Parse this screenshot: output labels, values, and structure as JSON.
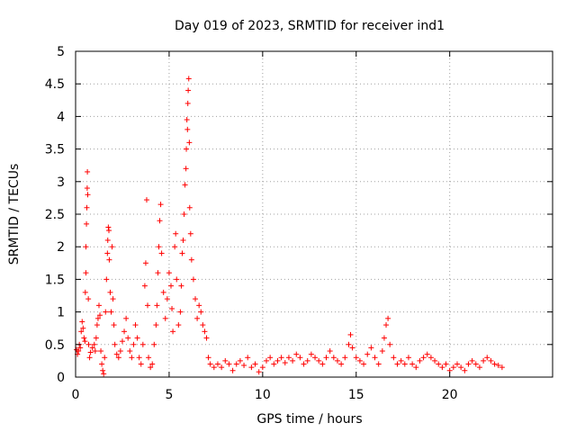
{
  "chart_data": {
    "type": "scatter",
    "title": "Day 019 of 2023, SRMTID for receiver ind1",
    "xlabel": "GPS time / hours",
    "ylabel": "SRMTID / TECUs",
    "xlim": [
      0,
      25.5
    ],
    "ylim": [
      0,
      5
    ],
    "xticks": [
      "0",
      "5",
      "10",
      "15",
      "20"
    ],
    "xtick_values": [
      0,
      5,
      10,
      15,
      20
    ],
    "yticks": [
      "0",
      "0.5",
      "1",
      "1.5",
      "2",
      "2.5",
      "3",
      "3.5",
      "4",
      "4.5",
      "5"
    ],
    "ytick_values": [
      0,
      0.5,
      1,
      1.5,
      2,
      2.5,
      3,
      3.5,
      4,
      4.5,
      5
    ],
    "grid": true,
    "marker": "+",
    "marker_color": "#ff0000",
    "series": [
      {
        "name": "SRMTID",
        "points": [
          [
            0.05,
            0.42
          ],
          [
            0.1,
            0.35
          ],
          [
            0.15,
            0.4
          ],
          [
            0.2,
            0.5
          ],
          [
            0.25,
            0.45
          ],
          [
            0.3,
            0.7
          ],
          [
            0.35,
            0.85
          ],
          [
            0.4,
            0.75
          ],
          [
            0.45,
            0.6
          ],
          [
            0.5,
            0.55
          ],
          [
            0.52,
            1.3
          ],
          [
            0.55,
            1.6
          ],
          [
            0.55,
            2.0
          ],
          [
            0.58,
            2.35
          ],
          [
            0.6,
            2.6
          ],
          [
            0.62,
            2.9
          ],
          [
            0.63,
            3.15
          ],
          [
            0.65,
            2.8
          ],
          [
            0.68,
            1.2
          ],
          [
            0.7,
            0.5
          ],
          [
            0.75,
            0.3
          ],
          [
            0.8,
            0.38
          ],
          [
            0.9,
            0.45
          ],
          [
            1.0,
            0.5
          ],
          [
            1.05,
            0.4
          ],
          [
            1.1,
            0.6
          ],
          [
            1.15,
            0.8
          ],
          [
            1.2,
            0.9
          ],
          [
            1.25,
            1.1
          ],
          [
            1.3,
            0.95
          ],
          [
            1.35,
            0.4
          ],
          [
            1.4,
            0.2
          ],
          [
            1.45,
            0.1
          ],
          [
            1.5,
            0.05
          ],
          [
            1.55,
            0.3
          ],
          [
            1.6,
            1.0
          ],
          [
            1.65,
            1.5
          ],
          [
            1.7,
            1.9
          ],
          [
            1.72,
            2.1
          ],
          [
            1.75,
            2.3
          ],
          [
            1.78,
            2.25
          ],
          [
            1.8,
            1.8
          ],
          [
            1.85,
            1.3
          ],
          [
            1.9,
            1.0
          ],
          [
            1.95,
            2.0
          ],
          [
            2.0,
            1.2
          ],
          [
            2.05,
            0.8
          ],
          [
            2.1,
            0.5
          ],
          [
            2.2,
            0.35
          ],
          [
            2.3,
            0.3
          ],
          [
            2.4,
            0.4
          ],
          [
            2.5,
            0.55
          ],
          [
            2.6,
            0.7
          ],
          [
            2.7,
            0.9
          ],
          [
            2.8,
            0.6
          ],
          [
            2.9,
            0.4
          ],
          [
            3.0,
            0.3
          ],
          [
            3.1,
            0.5
          ],
          [
            3.2,
            0.8
          ],
          [
            3.3,
            0.6
          ],
          [
            3.4,
            0.3
          ],
          [
            3.5,
            0.2
          ],
          [
            3.6,
            0.5
          ],
          [
            3.7,
            1.4
          ],
          [
            3.75,
            1.75
          ],
          [
            3.8,
            2.72
          ],
          [
            3.85,
            1.1
          ],
          [
            3.9,
            0.3
          ],
          [
            4.0,
            0.15
          ],
          [
            4.1,
            0.2
          ],
          [
            4.2,
            0.5
          ],
          [
            4.3,
            0.8
          ],
          [
            4.35,
            1.1
          ],
          [
            4.4,
            1.6
          ],
          [
            4.45,
            2.0
          ],
          [
            4.5,
            2.4
          ],
          [
            4.55,
            2.65
          ],
          [
            4.6,
            1.9
          ],
          [
            4.7,
            1.3
          ],
          [
            4.8,
            0.9
          ],
          [
            4.9,
            1.2
          ],
          [
            5.0,
            1.6
          ],
          [
            5.1,
            1.4
          ],
          [
            5.15,
            1.05
          ],
          [
            5.2,
            0.7
          ],
          [
            5.3,
            2.0
          ],
          [
            5.35,
            2.2
          ],
          [
            5.4,
            1.5
          ],
          [
            5.5,
            0.8
          ],
          [
            5.6,
            1.0
          ],
          [
            5.65,
            1.4
          ],
          [
            5.7,
            1.9
          ],
          [
            5.75,
            2.1
          ],
          [
            5.8,
            2.5
          ],
          [
            5.85,
            2.95
          ],
          [
            5.9,
            3.2
          ],
          [
            5.92,
            3.5
          ],
          [
            5.95,
            3.95
          ],
          [
            5.98,
            3.8
          ],
          [
            6.0,
            4.2
          ],
          [
            6.02,
            4.4
          ],
          [
            6.05,
            4.58
          ],
          [
            6.08,
            3.6
          ],
          [
            6.1,
            2.6
          ],
          [
            6.15,
            2.2
          ],
          [
            6.2,
            1.8
          ],
          [
            6.3,
            1.5
          ],
          [
            6.4,
            1.2
          ],
          [
            6.5,
            0.9
          ],
          [
            6.6,
            1.1
          ],
          [
            6.7,
            1.0
          ],
          [
            6.8,
            0.8
          ],
          [
            6.9,
            0.7
          ],
          [
            7.0,
            0.6
          ],
          [
            7.1,
            0.3
          ],
          [
            7.2,
            0.2
          ],
          [
            7.4,
            0.15
          ],
          [
            7.6,
            0.2
          ],
          [
            7.8,
            0.15
          ],
          [
            8.0,
            0.25
          ],
          [
            8.2,
            0.2
          ],
          [
            8.4,
            0.1
          ],
          [
            8.6,
            0.2
          ],
          [
            8.8,
            0.25
          ],
          [
            9.0,
            0.18
          ],
          [
            9.2,
            0.3
          ],
          [
            9.4,
            0.15
          ],
          [
            9.6,
            0.2
          ],
          [
            9.8,
            0.08
          ],
          [
            10.0,
            0.15
          ],
          [
            10.2,
            0.25
          ],
          [
            10.4,
            0.3
          ],
          [
            10.6,
            0.2
          ],
          [
            10.8,
            0.25
          ],
          [
            11.0,
            0.3
          ],
          [
            11.2,
            0.22
          ],
          [
            11.4,
            0.3
          ],
          [
            11.6,
            0.25
          ],
          [
            11.8,
            0.35
          ],
          [
            12.0,
            0.3
          ],
          [
            12.2,
            0.2
          ],
          [
            12.4,
            0.25
          ],
          [
            12.6,
            0.35
          ],
          [
            12.8,
            0.3
          ],
          [
            13.0,
            0.25
          ],
          [
            13.2,
            0.2
          ],
          [
            13.4,
            0.3
          ],
          [
            13.6,
            0.4
          ],
          [
            13.8,
            0.3
          ],
          [
            14.0,
            0.25
          ],
          [
            14.2,
            0.2
          ],
          [
            14.4,
            0.3
          ],
          [
            14.6,
            0.5
          ],
          [
            14.7,
            0.65
          ],
          [
            14.8,
            0.45
          ],
          [
            15.0,
            0.3
          ],
          [
            15.2,
            0.25
          ],
          [
            15.4,
            0.2
          ],
          [
            15.6,
            0.35
          ],
          [
            15.8,
            0.45
          ],
          [
            16.0,
            0.3
          ],
          [
            16.2,
            0.2
          ],
          [
            16.4,
            0.4
          ],
          [
            16.5,
            0.6
          ],
          [
            16.6,
            0.8
          ],
          [
            16.7,
            0.9
          ],
          [
            16.8,
            0.5
          ],
          [
            17.0,
            0.3
          ],
          [
            17.2,
            0.2
          ],
          [
            17.4,
            0.25
          ],
          [
            17.6,
            0.2
          ],
          [
            17.8,
            0.3
          ],
          [
            18.0,
            0.2
          ],
          [
            18.2,
            0.15
          ],
          [
            18.4,
            0.25
          ],
          [
            18.6,
            0.3
          ],
          [
            18.8,
            0.35
          ],
          [
            19.0,
            0.3
          ],
          [
            19.2,
            0.25
          ],
          [
            19.4,
            0.2
          ],
          [
            19.6,
            0.15
          ],
          [
            19.8,
            0.2
          ],
          [
            20.0,
            0.1
          ],
          [
            20.2,
            0.15
          ],
          [
            20.4,
            0.2
          ],
          [
            20.6,
            0.15
          ],
          [
            20.8,
            0.1
          ],
          [
            21.0,
            0.2
          ],
          [
            21.2,
            0.25
          ],
          [
            21.4,
            0.2
          ],
          [
            21.6,
            0.15
          ],
          [
            21.8,
            0.25
          ],
          [
            22.0,
            0.3
          ],
          [
            22.2,
            0.25
          ],
          [
            22.4,
            0.2
          ],
          [
            22.6,
            0.18
          ],
          [
            22.8,
            0.15
          ]
        ]
      }
    ]
  }
}
